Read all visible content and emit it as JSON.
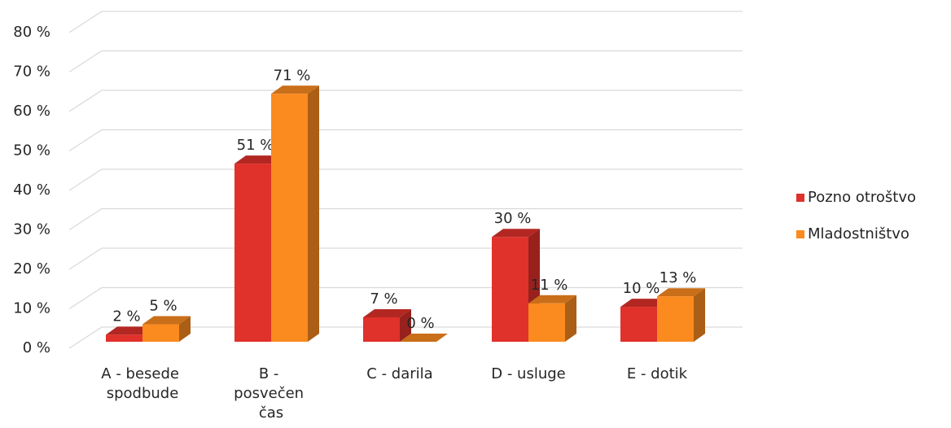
{
  "chart_data": {
    "type": "bar3d",
    "categories": [
      "A - besede spodbude",
      "B - posvečen čas",
      "C - darila",
      "D - usluge",
      "E - dotik"
    ],
    "series": [
      {
        "name": "Pozno otroštvo",
        "color": "#e0312b",
        "values": [
          2,
          51,
          7,
          30,
          10
        ],
        "value_labels": [
          "2 %",
          "51 %",
          "7 %",
          "30 %",
          "10 %"
        ]
      },
      {
        "name": "Mladostništvo",
        "color": "#fb8a1f",
        "values": [
          5,
          71,
          0,
          11,
          13
        ],
        "value_labels": [
          "5 %",
          "71 %",
          "0 %",
          "11 %",
          "13 %"
        ]
      }
    ],
    "ylim": [
      0,
      80
    ],
    "yticks": [
      {
        "value": 0,
        "label": "0 %"
      },
      {
        "value": 10,
        "label": "10 %"
      },
      {
        "value": 20,
        "label": "20 %"
      },
      {
        "value": 30,
        "label": "30 %"
      },
      {
        "value": 40,
        "label": "40 %"
      },
      {
        "value": 50,
        "label": "50 %"
      },
      {
        "value": 60,
        "label": "60 %"
      },
      {
        "value": 70,
        "label": "70 %"
      },
      {
        "value": 80,
        "label": "80 %"
      }
    ],
    "grid": true,
    "legend": "right"
  }
}
